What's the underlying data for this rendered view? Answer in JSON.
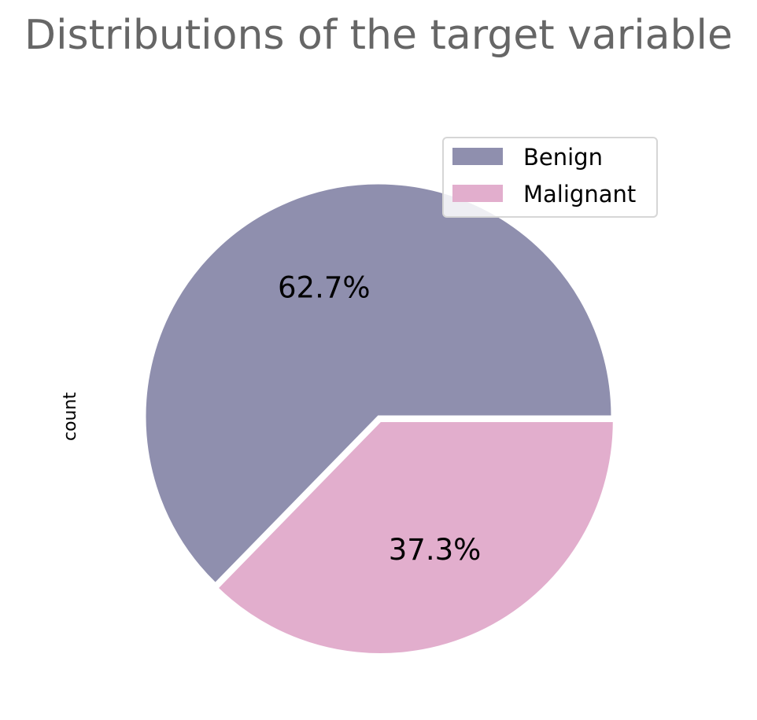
{
  "chart_data": {
    "type": "pie",
    "title": "Distributions of the target variable",
    "ylabel": "count",
    "legend_position": "upper-right",
    "slices": [
      {
        "label": "Benign",
        "percent": 62.7,
        "pct_label": "62.7%",
        "color": "#8f8fae",
        "explode": 0
      },
      {
        "label": "Malignant",
        "percent": 37.3,
        "pct_label": "37.3%",
        "color": "#e2aecd",
        "explode": 0.02
      }
    ]
  }
}
